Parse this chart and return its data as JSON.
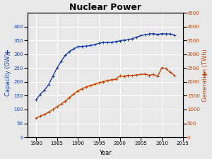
{
  "title": "Nuclear Power",
  "xlabel": "Year",
  "ylabel_left": "Capacity (GW)",
  "ylabel_right": "Generation (TWh)",
  "background_color": "#e8e8e8",
  "grid_color": "white",
  "capacity_color": "#1a3faa",
  "generation_color": "#cc4400",
  "capacity_data": {
    "years": [
      1980,
      1981,
      1982,
      1983,
      1984,
      1985,
      1986,
      1987,
      1988,
      1989,
      1990,
      1991,
      1992,
      1993,
      1994,
      1995,
      1996,
      1997,
      1998,
      1999,
      2000,
      2001,
      2002,
      2003,
      2004,
      2005,
      2006,
      2007,
      2008,
      2009,
      2010,
      2011,
      2012,
      2013
    ],
    "values": [
      135,
      155,
      170,
      190,
      220,
      250,
      275,
      297,
      310,
      320,
      328,
      329,
      330,
      332,
      335,
      340,
      343,
      343,
      344,
      346,
      349,
      352,
      353,
      357,
      362,
      368,
      371,
      374,
      375,
      372,
      375,
      374,
      374,
      370
    ]
  },
  "generation_data": {
    "years": [
      1980,
      1981,
      1982,
      1983,
      1984,
      1985,
      1986,
      1987,
      1988,
      1989,
      1990,
      1991,
      1992,
      1993,
      1994,
      1995,
      1996,
      1997,
      1998,
      1999,
      2000,
      2001,
      2002,
      2003,
      2004,
      2005,
      2006,
      2007,
      2008,
      2009,
      2010,
      2011,
      2012,
      2013
    ],
    "values": [
      684,
      762,
      820,
      905,
      1000,
      1100,
      1200,
      1300,
      1440,
      1560,
      1678,
      1755,
      1820,
      1870,
      1920,
      1970,
      2010,
      2050,
      2080,
      2100,
      2220,
      2200,
      2240,
      2230,
      2260,
      2270,
      2290,
      2240,
      2270,
      2200,
      2520,
      2480,
      2350,
      2240
    ]
  },
  "xlim": [
    1978,
    2015
  ],
  "ylim_left": [
    0,
    450
  ],
  "ylim_right": [
    0,
    4500
  ],
  "yticks_left": [
    0,
    50,
    100,
    150,
    200,
    250,
    300,
    350,
    400
  ],
  "yticks_right": [
    0,
    500,
    1000,
    1500,
    2000,
    2500,
    3000,
    3500,
    4000,
    4500
  ],
  "xticks": [
    1980,
    1985,
    1990,
    1995,
    2000,
    2005,
    2010,
    2015
  ],
  "title_fontsize": 9,
  "label_fontsize": 6,
  "tick_fontsize": 5
}
